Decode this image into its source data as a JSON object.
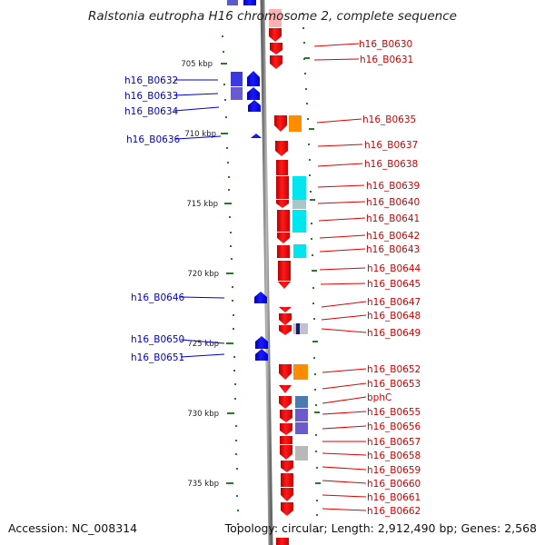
{
  "title": "Ralstonia eutropha H16 chromosome 2, complete sequence",
  "accession": "Accession: NC_008314",
  "topology": "Topology: circular; Length: 2,912,490 bp; Genes: 2,568",
  "colors": {
    "forward_gene": "#ff0000",
    "reverse_gene": "#0000ff",
    "ruler_tick": "#2a7a2a",
    "backbone": "#888888"
  },
  "scale_ticks": [
    {
      "label": "705 kbp",
      "kbp": 705
    },
    {
      "label": "710 kbp",
      "kbp": 710
    },
    {
      "label": "715 kbp",
      "kbp": 715
    },
    {
      "label": "720 kbp",
      "kbp": 720
    },
    {
      "label": "725 kbp",
      "kbp": 725
    },
    {
      "label": "730 kbp",
      "kbp": 730
    },
    {
      "label": "735 kbp",
      "kbp": 735
    }
  ],
  "forward_gene_labels": [
    "h16_B0630",
    "h16_B0631",
    "h16_B0635",
    "h16_B0637",
    "h16_B0638",
    "h16_B0639",
    "h16_B0640",
    "h16_B0641",
    "h16_B0642",
    "h16_B0643",
    "h16_B0644",
    "h16_B0645",
    "h16_B0647",
    "h16_B0648",
    "h16_B0649",
    "h16_B0652",
    "h16_B0653",
    "bphC",
    "h16_B0655",
    "h16_B0656",
    "h16_B0657",
    "h16_B0658",
    "h16_B0659",
    "h16_B0660",
    "h16_B0661",
    "h16_B0662"
  ],
  "reverse_gene_labels": [
    "h16_B0632",
    "h16_B0633",
    "h16_B0634",
    "h16_B0636",
    "h16_B0646",
    "h16_B0650",
    "h16_B0651"
  ]
}
